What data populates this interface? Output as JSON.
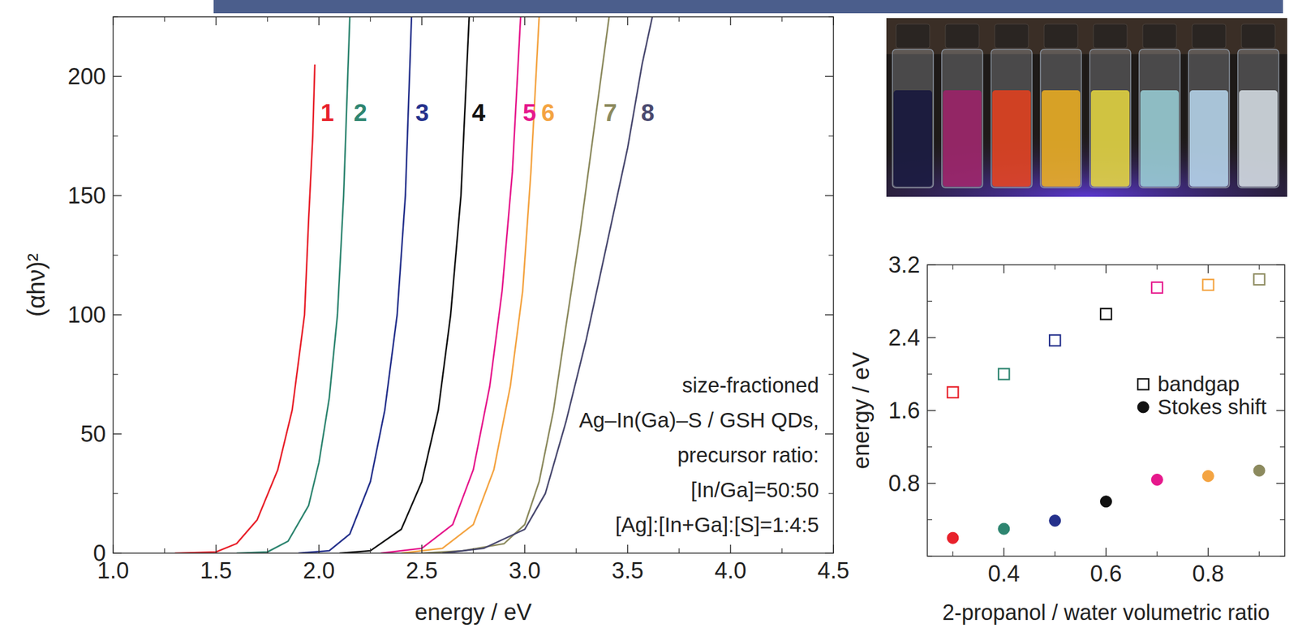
{
  "chart_data": [
    {
      "type": "line",
      "x_label": "energy / eV",
      "y_label": "(αhν)²",
      "xlim": [
        1.0,
        4.5
      ],
      "ylim": [
        0,
        225
      ],
      "xticks": [
        {
          "value": 1,
          "label": "1.0"
        },
        1.5,
        {
          "value": 2,
          "label": "2.0"
        },
        2.5,
        {
          "value": 3,
          "label": "3.0"
        },
        3.5,
        {
          "value": 4,
          "label": "4.0"
        },
        4.5
      ],
      "yticks": [
        0,
        50,
        100,
        150,
        200
      ],
      "grid": false,
      "annotations": [
        "size-fractioned",
        "Ag–In(Ga)–S / GSH QDs,",
        "precursor ratio:",
        "[In/Ga]=50:50",
        "[Ag]:[In+Ga]:[S]=1:4:5"
      ],
      "series": [
        {
          "name": "1",
          "color": "#e8212b",
          "x": [
            1.3,
            1.5,
            1.6,
            1.7,
            1.8,
            1.87,
            1.93,
            1.95,
            1.97,
            1.98
          ],
          "values": [
            0,
            0.5,
            4,
            14,
            35,
            60,
            100,
            140,
            175,
            205
          ]
        },
        {
          "name": "2",
          "color": "#2e8570",
          "x": [
            1.6,
            1.75,
            1.85,
            1.95,
            2.0,
            2.05,
            2.09,
            2.12,
            2.14,
            2.15
          ],
          "values": [
            0,
            0.5,
            5,
            20,
            38,
            65,
            100,
            150,
            200,
            225
          ]
        },
        {
          "name": "3",
          "color": "#25318c",
          "x": [
            1.9,
            2.05,
            2.15,
            2.25,
            2.32,
            2.38,
            2.42,
            2.45
          ],
          "values": [
            0,
            1,
            8,
            30,
            60,
            100,
            150,
            225
          ]
        },
        {
          "name": "4",
          "color": "#111111",
          "x": [
            2.1,
            2.25,
            2.4,
            2.5,
            2.58,
            2.64,
            2.69,
            2.73
          ],
          "values": [
            0,
            1,
            10,
            30,
            60,
            100,
            150,
            225
          ]
        },
        {
          "name": "5",
          "color": "#e6188c",
          "x": [
            2.3,
            2.5,
            2.65,
            2.75,
            2.83,
            2.89,
            2.94,
            2.98
          ],
          "values": [
            0,
            2,
            12,
            35,
            70,
            110,
            160,
            225
          ]
        },
        {
          "name": "6",
          "color": "#f4a442",
          "x": [
            2.4,
            2.6,
            2.75,
            2.85,
            2.93,
            2.99,
            3.03,
            3.07
          ],
          "values": [
            0,
            2,
            12,
            35,
            70,
            110,
            160,
            225
          ]
        },
        {
          "name": "7",
          "color": "#8c8a5e",
          "x": [
            2.5,
            2.7,
            2.9,
            3.0,
            3.07,
            3.14,
            3.2,
            3.27,
            3.34,
            3.41
          ],
          "values": [
            0,
            1,
            4,
            12,
            30,
            60,
            95,
            135,
            180,
            225
          ]
        },
        {
          "name": "8",
          "color": "#4a4a70",
          "x": [
            2.6,
            2.8,
            3.0,
            3.1,
            3.2,
            3.3,
            3.4,
            3.5,
            3.57,
            3.62
          ],
          "values": [
            0,
            2,
            10,
            25,
            55,
            90,
            130,
            170,
            205,
            225
          ]
        }
      ]
    },
    {
      "type": "scatter",
      "x_label": "2-propanol / water volumetric ratio",
      "y_label": "energy / eV",
      "xlim": [
        0.25,
        0.95
      ],
      "ylim": [
        0,
        3.2
      ],
      "xticks": [
        0.4,
        0.6,
        0.8
      ],
      "yticks": [
        0.8,
        1.6,
        2.4,
        3.2
      ],
      "grid": false,
      "legend": "right",
      "x": [
        0.3,
        0.4,
        0.5,
        0.6,
        0.7,
        0.8,
        0.9
      ],
      "series": [
        {
          "name": "bandgap",
          "marker": "open-square",
          "colors": [
            "#e8212b",
            "#2e8570",
            "#25318c",
            "#111111",
            "#e6188c",
            "#f4a442",
            "#8c8a5e"
          ],
          "values": [
            1.8,
            2.0,
            2.37,
            2.66,
            2.95,
            2.98,
            3.04
          ]
        },
        {
          "name": "Stokes shift",
          "marker": "circle",
          "colors": [
            "#e8212b",
            "#2e8570",
            "#25318c",
            "#111111",
            "#e6188c",
            "#f4a442",
            "#8c8a5e"
          ],
          "values": [
            0.2,
            0.3,
            0.39,
            0.6,
            0.84,
            0.88,
            0.94
          ]
        }
      ]
    }
  ]
}
